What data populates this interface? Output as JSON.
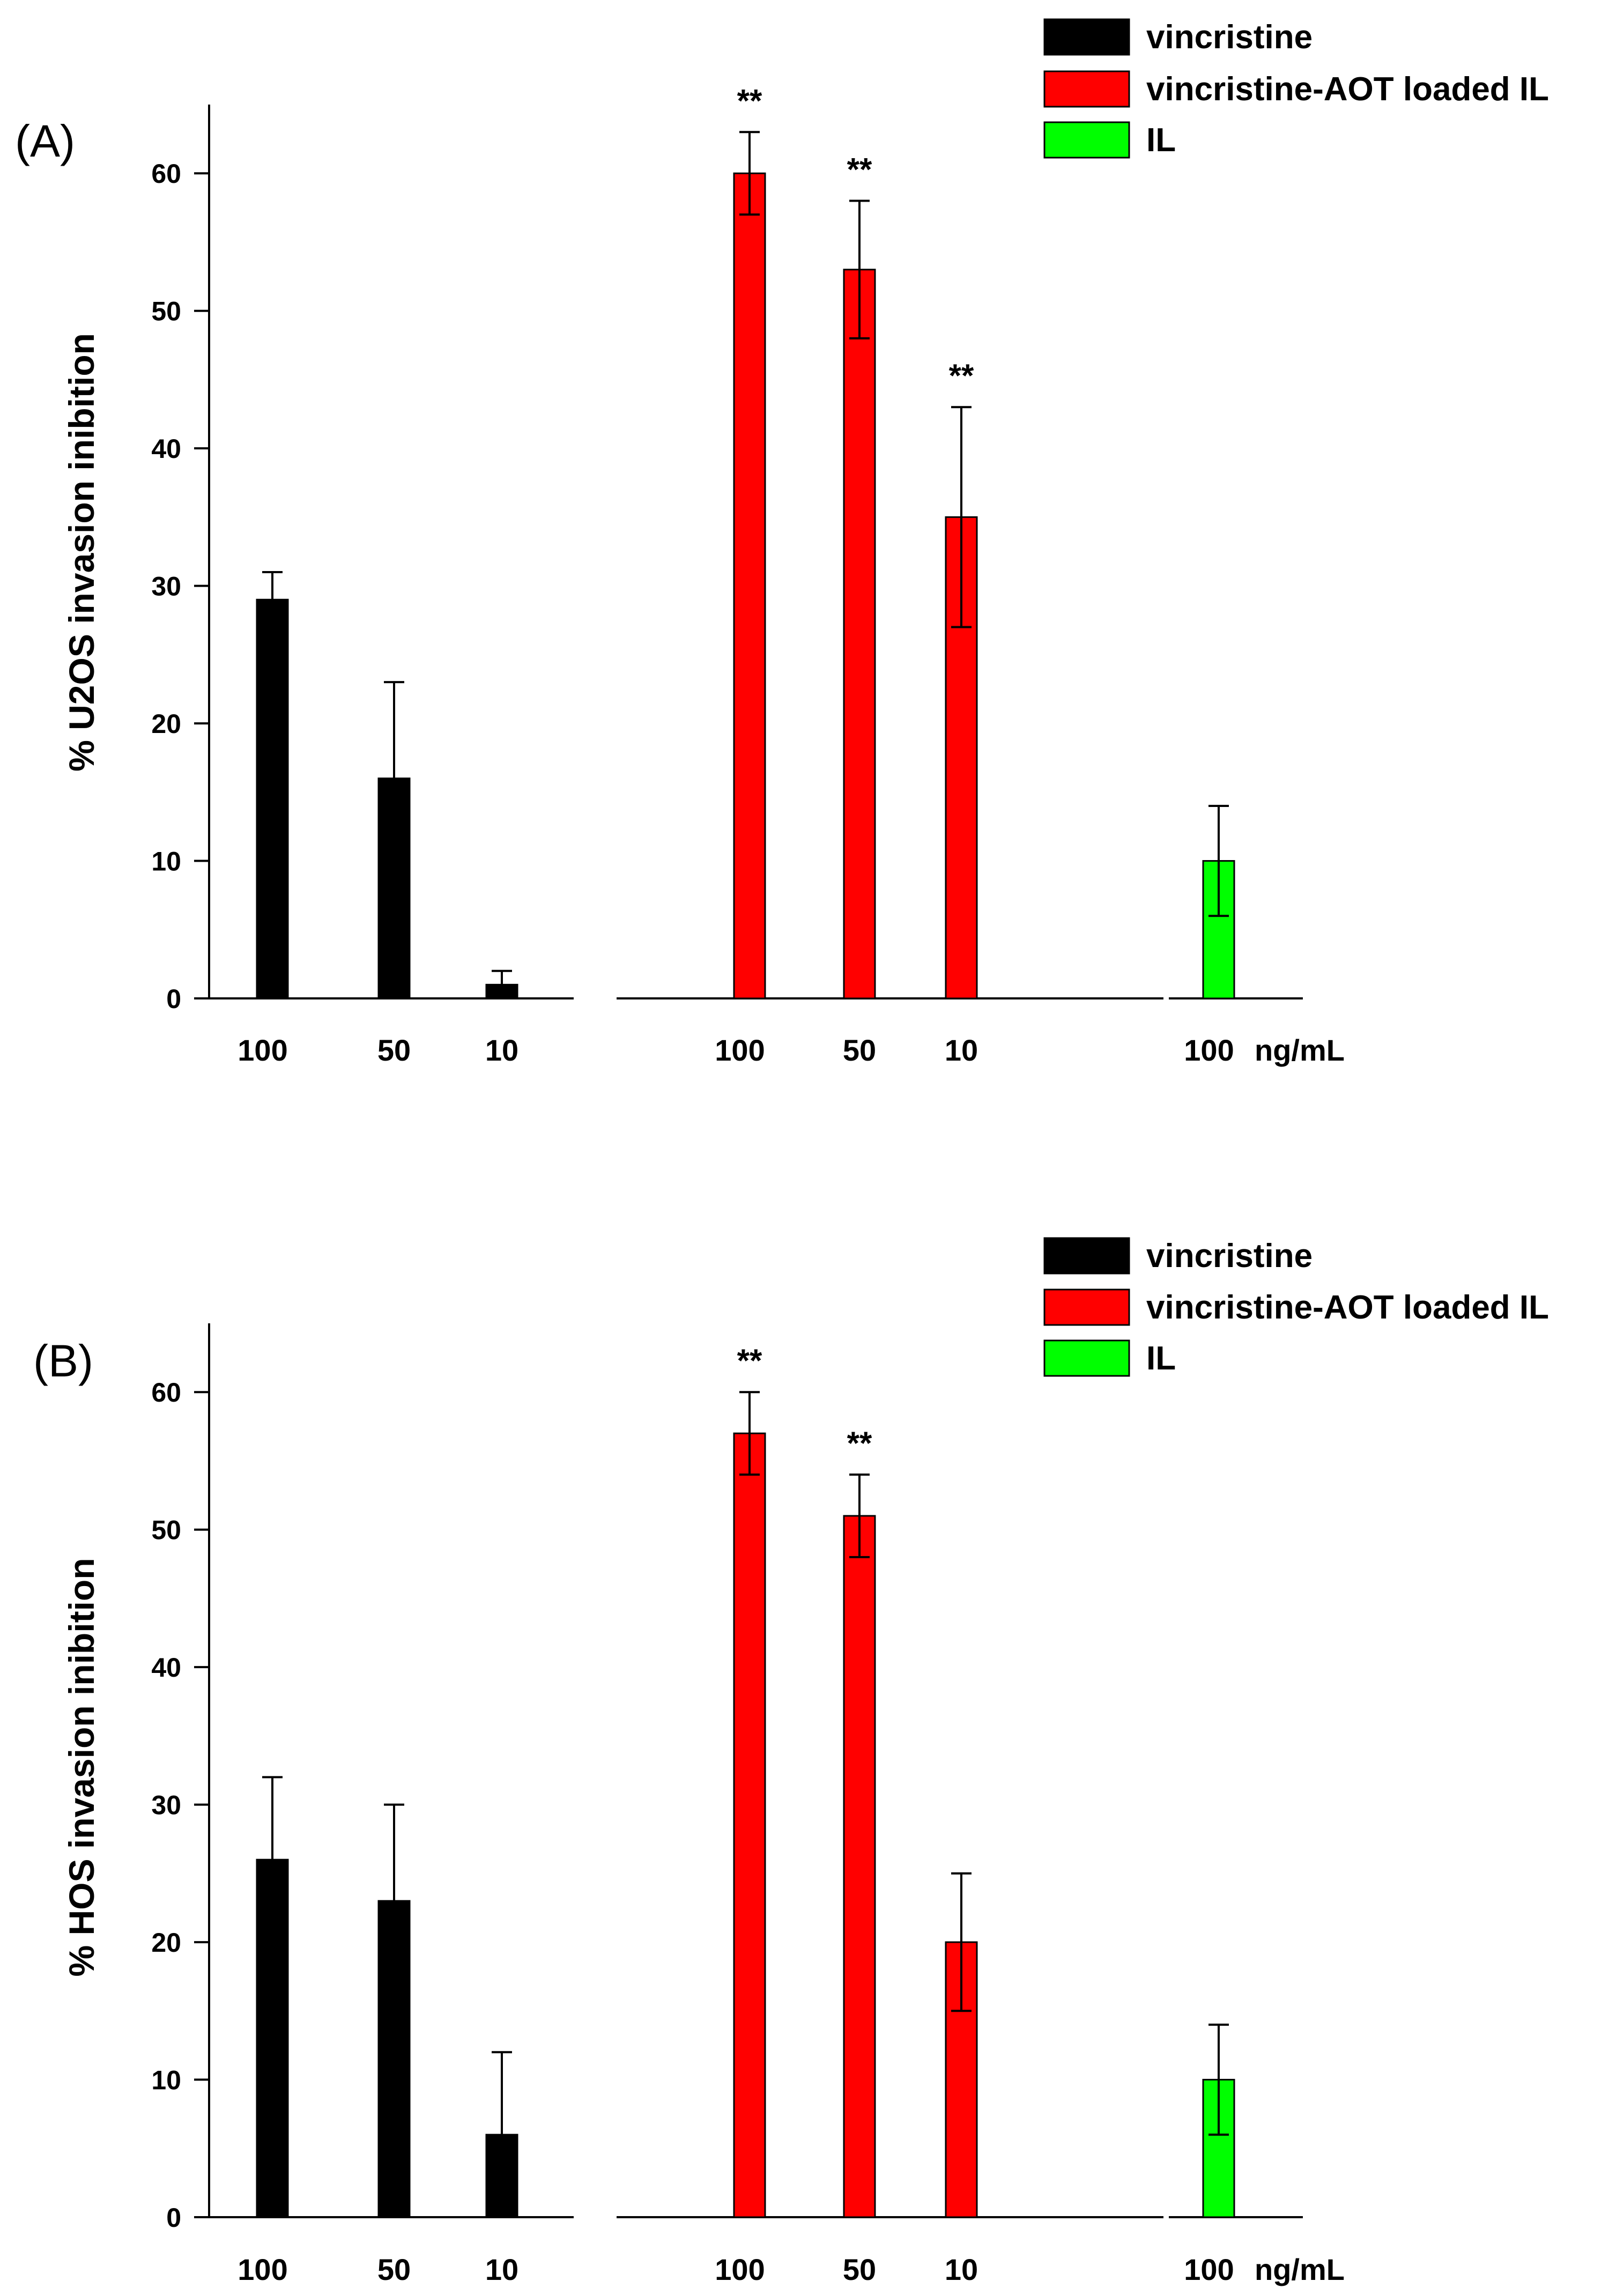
{
  "chart_data": [
    {
      "type": "bar",
      "panel_label": "(A)",
      "ylabel": "% U2OS invasion inibition",
      "xlabel": "ng/mL",
      "ylim": [
        0,
        65
      ],
      "yticks": [
        0,
        10,
        20,
        30,
        40,
        50,
        60
      ],
      "grid": false,
      "legend_position": "top-right",
      "series": [
        {
          "name": "vincristine",
          "color": "#000000",
          "categories": [
            "100",
            "50",
            "10"
          ],
          "values": [
            29,
            16,
            1
          ],
          "errors": [
            2,
            7,
            1
          ],
          "significance": [
            "",
            "",
            ""
          ]
        },
        {
          "name": "vincristine-AOT loaded IL",
          "color": "#ff0000",
          "categories": [
            "100",
            "50",
            "10"
          ],
          "values": [
            60,
            53,
            35
          ],
          "errors": [
            3,
            5,
            8
          ],
          "significance": [
            "**",
            "**",
            "**"
          ]
        },
        {
          "name": "IL",
          "color": "#00ff00",
          "categories": [
            "100"
          ],
          "values": [
            10
          ],
          "errors": [
            4
          ],
          "significance": [
            ""
          ]
        }
      ]
    },
    {
      "type": "bar",
      "panel_label": "(B)",
      "ylabel": "% HOS invasion inibition",
      "xlabel": "ng/mL",
      "ylim": [
        0,
        65
      ],
      "yticks": [
        0,
        10,
        20,
        30,
        40,
        50,
        60
      ],
      "grid": false,
      "legend_position": "top-right",
      "series": [
        {
          "name": "vincristine",
          "color": "#000000",
          "categories": [
            "100",
            "50",
            "10"
          ],
          "values": [
            26,
            23,
            6
          ],
          "errors": [
            6,
            7,
            6
          ],
          "significance": [
            "",
            "",
            ""
          ]
        },
        {
          "name": "vincristine-AOT loaded IL",
          "color": "#ff0000",
          "categories": [
            "100",
            "50",
            "10"
          ],
          "values": [
            57,
            51,
            20
          ],
          "errors": [
            3,
            3,
            5
          ],
          "significance": [
            "**",
            "**",
            ""
          ]
        },
        {
          "name": "IL",
          "color": "#00ff00",
          "categories": [
            "100"
          ],
          "values": [
            10
          ],
          "errors": [
            4
          ],
          "significance": [
            ""
          ]
        }
      ]
    }
  ]
}
